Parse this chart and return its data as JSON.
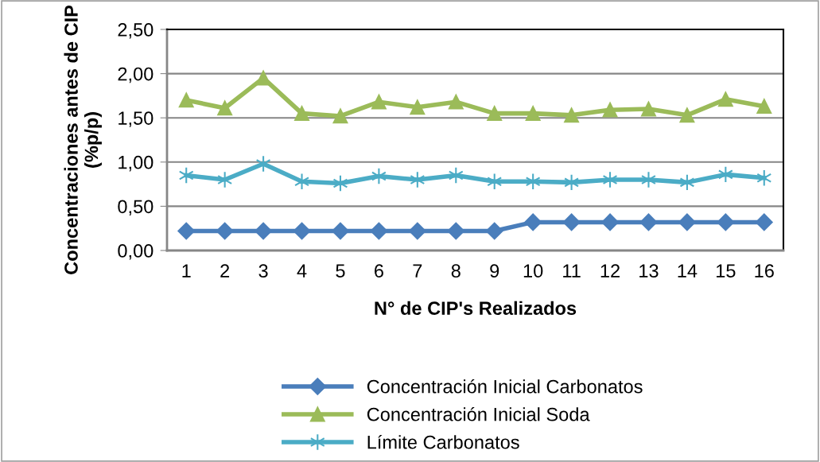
{
  "chart_data": {
    "type": "line",
    "xlabel": "N° de CIP's Realizados",
    "ylabel": "Concentraciones antes de CIP\n(%p/p)",
    "categories": [
      "1",
      "2",
      "3",
      "4",
      "5",
      "6",
      "7",
      "8",
      "9",
      "10",
      "11",
      "12",
      "13",
      "14",
      "15",
      "16"
    ],
    "ylim": [
      0,
      2.5
    ],
    "yticks": [
      {
        "value": 0,
        "label": "0,00"
      },
      {
        "value": 0.5,
        "label": "0,50"
      },
      {
        "value": 1,
        "label": "1,00"
      },
      {
        "value": 1.5,
        "label": "1,50"
      },
      {
        "value": 2,
        "label": "2,00"
      },
      {
        "value": 2.5,
        "label": "2,50"
      }
    ],
    "grid": "y",
    "legend": "bottom",
    "series": [
      {
        "name": "Concentración Inicial Carbonatos",
        "color": "#4a7ebb",
        "marker": "diamond",
        "values": [
          0.22,
          0.22,
          0.22,
          0.22,
          0.22,
          0.22,
          0.22,
          0.22,
          0.22,
          0.32,
          0.32,
          0.32,
          0.32,
          0.32,
          0.32,
          0.32
        ]
      },
      {
        "name": "Concentración Inicial Soda",
        "color": "#9bbb59",
        "marker": "triangle",
        "values": [
          1.7,
          1.61,
          1.95,
          1.55,
          1.52,
          1.68,
          1.62,
          1.68,
          1.55,
          1.55,
          1.53,
          1.59,
          1.6,
          1.53,
          1.71,
          1.63
        ]
      },
      {
        "name": "Límite Carbonatos",
        "color": "#4bacc6",
        "marker": "cross",
        "values": [
          0.85,
          0.8,
          0.98,
          0.78,
          0.76,
          0.84,
          0.8,
          0.85,
          0.78,
          0.78,
          0.77,
          0.8,
          0.8,
          0.77,
          0.86,
          0.82
        ]
      }
    ]
  }
}
